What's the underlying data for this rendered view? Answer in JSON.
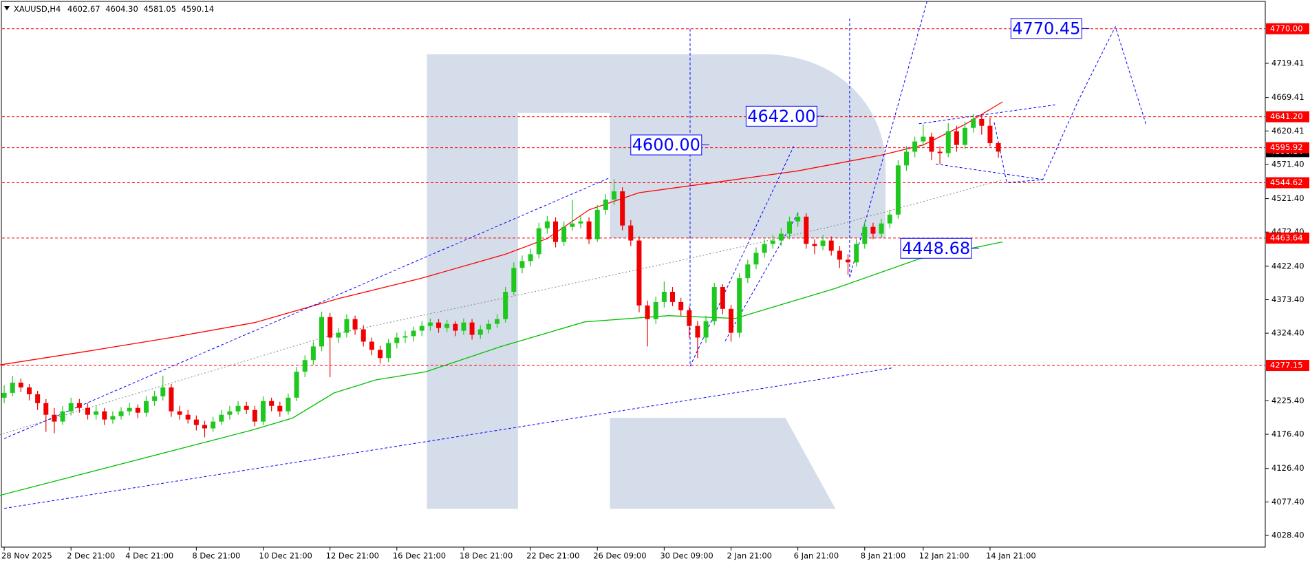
{
  "chart_data": {
    "type": "candlestick",
    "symbol": "XAUUSD,H4",
    "header": [
      {
        "value": 4602.67,
        "label": "4602.67"
      },
      {
        "value": 4604.3,
        "label": "4604.30"
      },
      {
        "value": 4581.05,
        "label": "4581.05"
      },
      {
        "value": 4590.14,
        "label": "4590.14"
      }
    ],
    "categories": [
      "28 Nov 2025",
      null,
      null,
      null,
      null,
      null,
      null,
      null,
      "2 Dec 21:00",
      null,
      null,
      null,
      null,
      null,
      null,
      "4 Dec 21:00",
      null,
      null,
      null,
      null,
      null,
      null,
      null,
      "8 Dec 21:00",
      null,
      null,
      null,
      null,
      null,
      null,
      null,
      "10 Dec 21:00",
      null,
      null,
      null,
      null,
      null,
      null,
      null,
      "12 Dec 21:00",
      null,
      null,
      null,
      null,
      null,
      null,
      null,
      "16 Dec 21:00",
      null,
      null,
      null,
      null,
      null,
      null,
      null,
      "18 Dec 21:00",
      null,
      null,
      null,
      null,
      null,
      null,
      null,
      "22 Dec 21:00",
      null,
      null,
      null,
      null,
      null,
      null,
      null,
      "26 Dec 09:00",
      null,
      null,
      null,
      null,
      null,
      null,
      null,
      "30 Dec 09:00",
      null,
      null,
      null,
      null,
      null,
      null,
      null,
      "2 Jan 21:00",
      null,
      null,
      null,
      null,
      null,
      null,
      null,
      "6 Jan 21:00",
      null,
      null,
      null,
      null,
      null,
      null,
      null,
      "8 Jan 21:00",
      null,
      null,
      null,
      null,
      null,
      null,
      "12 Jan 21:00",
      null,
      null,
      null,
      null,
      null,
      null,
      null,
      "14 Jan 21:00",
      null
    ],
    "candles": [
      [
        4230,
        4248,
        4222,
        4237
      ],
      [
        4237,
        4262,
        4232,
        4252
      ],
      [
        4252,
        4258,
        4238,
        4245
      ],
      [
        4245,
        4250,
        4226,
        4235
      ],
      [
        4235,
        4240,
        4212,
        4222
      ],
      [
        4222,
        4228,
        4180,
        4205
      ],
      [
        4205,
        4215,
        4178,
        4195
      ],
      [
        4195,
        4218,
        4190,
        4210
      ],
      [
        4210,
        4230,
        4204,
        4222
      ],
      [
        4222,
        4228,
        4208,
        4215
      ],
      [
        4215,
        4222,
        4198,
        4205
      ],
      [
        4205,
        4218,
        4198,
        4210
      ],
      [
        4210,
        4215,
        4190,
        4198
      ],
      [
        4198,
        4210,
        4192,
        4203
      ],
      [
        4203,
        4216,
        4198,
        4210
      ],
      [
        4210,
        4222,
        4204,
        4215
      ],
      [
        4215,
        4220,
        4200,
        4208
      ],
      [
        4208,
        4232,
        4202,
        4225
      ],
      [
        4225,
        4240,
        4218,
        4232
      ],
      [
        4232,
        4262,
        4226,
        4245
      ],
      [
        4245,
        4250,
        4202,
        4210
      ],
      [
        4210,
        4218,
        4198,
        4205
      ],
      [
        4205,
        4212,
        4192,
        4198
      ],
      [
        4198,
        4204,
        4182,
        4190
      ],
      [
        4190,
        4196,
        4172,
        4185
      ],
      [
        4185,
        4202,
        4180,
        4195
      ],
      [
        4195,
        4212,
        4190,
        4205
      ],
      [
        4205,
        4218,
        4198,
        4210
      ],
      [
        4210,
        4225,
        4205,
        4218
      ],
      [
        4218,
        4224,
        4206,
        4212
      ],
      [
        4212,
        4218,
        4188,
        4195
      ],
      [
        4195,
        4232,
        4190,
        4225
      ],
      [
        4225,
        4230,
        4210,
        4218
      ],
      [
        4218,
        4224,
        4202,
        4210
      ],
      [
        4210,
        4236,
        4205,
        4230
      ],
      [
        4230,
        4275,
        4225,
        4268
      ],
      [
        4268,
        4292,
        4260,
        4285
      ],
      [
        4285,
        4312,
        4278,
        4305
      ],
      [
        4305,
        4356,
        4298,
        4348
      ],
      [
        4348,
        4354,
        4260,
        4318
      ],
      [
        4318,
        4332,
        4310,
        4325
      ],
      [
        4325,
        4352,
        4318,
        4345
      ],
      [
        4345,
        4350,
        4322,
        4330
      ],
      [
        4330,
        4336,
        4305,
        4312
      ],
      [
        4312,
        4318,
        4292,
        4300
      ],
      [
        4300,
        4306,
        4280,
        4288
      ],
      [
        4288,
        4316,
        4282,
        4310
      ],
      [
        4310,
        4325,
        4302,
        4318
      ],
      [
        4318,
        4328,
        4310,
        4320
      ],
      [
        4320,
        4334,
        4312,
        4328
      ],
      [
        4328,
        4342,
        4320,
        4335
      ],
      [
        4335,
        4346,
        4328,
        4340
      ],
      [
        4340,
        4345,
        4325,
        4332
      ],
      [
        4332,
        4344,
        4326,
        4338
      ],
      [
        4338,
        4342,
        4320,
        4328
      ],
      [
        4328,
        4346,
        4322,
        4340
      ],
      [
        4340,
        4345,
        4315,
        4322
      ],
      [
        4322,
        4336,
        4316,
        4330
      ],
      [
        4330,
        4344,
        4324,
        4338
      ],
      [
        4338,
        4352,
        4332,
        4345
      ],
      [
        4345,
        4392,
        4340,
        4385
      ],
      [
        4385,
        4428,
        4380,
        4420
      ],
      [
        4420,
        4438,
        4412,
        4430
      ],
      [
        4430,
        4448,
        4422,
        4440
      ],
      [
        4440,
        4486,
        4434,
        4478
      ],
      [
        4478,
        4496,
        4470,
        4488
      ],
      [
        4488,
        4494,
        4450,
        4458
      ],
      [
        4458,
        4488,
        4452,
        4480
      ],
      [
        4480,
        4520,
        4474,
        4485
      ],
      [
        4485,
        4496,
        4478,
        4488
      ],
      [
        4488,
        4494,
        4455,
        4462
      ],
      [
        4462,
        4512,
        4458,
        4505
      ],
      [
        4505,
        4528,
        4498,
        4520
      ],
      [
        4520,
        4550,
        4512,
        4532
      ],
      [
        4532,
        4538,
        4475,
        4482
      ],
      [
        4482,
        4490,
        4452,
        4460
      ],
      [
        4460,
        4466,
        4355,
        4365
      ],
      [
        4365,
        4372,
        4305,
        4345
      ],
      [
        4345,
        4378,
        4338,
        4370
      ],
      [
        4370,
        4400,
        4362,
        4385
      ],
      [
        4385,
        4392,
        4364,
        4370
      ],
      [
        4370,
        4376,
        4350,
        4358
      ],
      [
        4358,
        4364,
        4318,
        4335
      ],
      [
        4335,
        4342,
        4288,
        4318
      ],
      [
        4318,
        4350,
        4310,
        4342
      ],
      [
        4342,
        4398,
        4336,
        4392
      ],
      [
        4392,
        4396,
        4352,
        4360
      ],
      [
        4360,
        4366,
        4312,
        4325
      ],
      [
        4325,
        4412,
        4318,
        4405
      ],
      [
        4405,
        4432,
        4398,
        4425
      ],
      [
        4425,
        4450,
        4418,
        4442
      ],
      [
        4442,
        4462,
        4435,
        4455
      ],
      [
        4455,
        4468,
        4448,
        4460
      ],
      [
        4460,
        4478,
        4452,
        4470
      ],
      [
        4470,
        4495,
        4462,
        4488
      ],
      [
        4488,
        4502,
        4480,
        4495
      ],
      [
        4495,
        4500,
        4448,
        4455
      ],
      [
        4455,
        4462,
        4440,
        4452
      ],
      [
        4452,
        4468,
        4446,
        4460
      ],
      [
        4460,
        4466,
        4438,
        4445
      ],
      [
        4445,
        4452,
        4420,
        4432
      ],
      [
        4432,
        4440,
        4410,
        4428
      ],
      [
        4428,
        4462,
        4422,
        4455
      ],
      [
        4455,
        4488,
        4448,
        4480
      ],
      [
        4480,
        4486,
        4462,
        4470
      ],
      [
        4470,
        4492,
        4464,
        4485
      ],
      [
        4485,
        4505,
        4478,
        4498
      ],
      [
        4498,
        4578,
        4492,
        4570
      ],
      [
        4570,
        4598,
        4562,
        4590
      ],
      [
        4590,
        4612,
        4582,
        4605
      ],
      [
        4605,
        4630,
        4598,
        4612
      ],
      [
        4612,
        4618,
        4578,
        4590
      ],
      [
        4590,
        4598,
        4572,
        4588
      ],
      [
        4588,
        4632,
        4582,
        4620
      ],
      [
        4620,
        4628,
        4590,
        4600
      ],
      [
        4600,
        4634,
        4594,
        4625
      ],
      [
        4625,
        4645,
        4618,
        4638
      ],
      [
        4638,
        4644,
        4615,
        4628
      ],
      [
        4628,
        4640,
        4598,
        4602.67
      ],
      [
        4602.67,
        4604.3,
        4581.05,
        4590.14
      ]
    ],
    "up_color": "#1ec81e",
    "down_color": "#f00000",
    "ylim": [
      4017.3,
      4812.1
    ],
    "yticks": [
      {
        "value": 4028.4,
        "label": "4028.40"
      },
      {
        "value": 4077.4,
        "label": "4077.40"
      },
      {
        "value": 4126.4,
        "label": "4126.40"
      },
      {
        "value": 4176.4,
        "label": "4176.40"
      },
      {
        "value": 4225.4,
        "label": "4225.40"
      },
      {
        "value": 4324.4,
        "label": "4324.40"
      },
      {
        "value": 4373.4,
        "label": "4373.40"
      },
      {
        "value": 4422.4,
        "label": "4422.40"
      },
      {
        "value": 4472.4,
        "label": "4472.40"
      },
      {
        "value": 4521.4,
        "label": "4521.40"
      },
      {
        "value": 4571.4,
        "label": "4571.40"
      },
      {
        "value": 4620.41,
        "label": "4620.41"
      },
      {
        "value": 4669.41,
        "label": "4669.41"
      },
      {
        "value": 4719.41,
        "label": "4719.41"
      }
    ],
    "levels": [
      {
        "value": 4770,
        "label": "4770.00"
      },
      {
        "value": 4641.2,
        "label": "4641.20"
      },
      {
        "value": 4595.92,
        "label": "4595.92"
      },
      {
        "value": 4544.62,
        "label": "4544.62"
      },
      {
        "value": 4463.64,
        "label": "4463.64"
      },
      {
        "value": 4277.15,
        "label": "4277.15"
      }
    ],
    "level_color": "#ff0000",
    "lines": [
      {
        "color": "#ff0000",
        "style": "solid",
        "x": [
          -0.5,
          10,
          20,
          30,
          40,
          50,
          60,
          65,
          70,
          76,
          85,
          95,
          105,
          110,
          115,
          119.5
        ],
        "values": [
          4278,
          4298,
          4318,
          4340,
          4375,
          4405,
          4440,
          4463,
          4505,
          4530,
          4545,
          4562,
          4585,
          4600,
          4630,
          4663
        ]
      },
      {
        "color": "#00c000",
        "style": "solid",
        "x": [
          -0.5,
          29.5,
          34.5,
          39.5,
          44.5,
          50.5,
          59.5,
          69.5,
          79.5,
          87.5,
          99.5,
          109.5,
          119.5
        ],
        "values": [
          4087,
          4182,
          4200,
          4237,
          4256,
          4268,
          4305,
          4341,
          4350,
          4346,
          4390,
          4433,
          4458
        ]
      },
      {
        "color": "#808080",
        "style": "dotted",
        "x": [
          -0.5,
          39.5,
          79.5,
          99.5,
          119.5
        ],
        "values": [
          4176,
          4323,
          4427,
          4482,
          4549
        ]
      }
    ],
    "trend_color": "#0000ff",
    "trend_lines": [
      {
        "x": [
          0,
          106.5
        ],
        "values": [
          4068,
          4274
        ]
      },
      {
        "x": [
          0,
          72.5
        ],
        "values": [
          4170,
          4552
        ]
      },
      {
        "x": [
          82.1,
          82.1
        ],
        "values": [
          4770,
          4276
        ]
      },
      {
        "x": [
          82.1,
          94.5
        ],
        "values": [
          4276,
          4598
        ]
      },
      {
        "x": [
          86.3,
          95
        ],
        "values": [
          4313,
          4500
        ]
      },
      {
        "x": [
          101.2,
          101.2
        ],
        "values": [
          4785,
          4406
        ]
      },
      {
        "x": [
          101.2,
          110.5
        ],
        "values": [
          4406,
          4812
        ]
      },
      {
        "x": [
          109.5,
          126
        ],
        "values": [
          4631,
          4659
        ]
      },
      {
        "x": [
          111.5,
          124.5
        ],
        "values": [
          4572,
          4549
        ]
      },
      {
        "x": [
          118.5,
          120,
          124.3,
          128.5,
          133,
          136.7
        ],
        "values": [
          4633,
          4545,
          4549,
          4663,
          4773,
          4629
        ]
      }
    ],
    "annotations": [
      {
        "x": 120.5,
        "value": 4770.45,
        "label": "4770.45"
      },
      {
        "x": 88.8,
        "value": 4642,
        "label": "4642.00"
      },
      {
        "x": 75,
        "value": 4600,
        "label": "4600.00"
      },
      {
        "x": 107.3,
        "value": 4448.68,
        "label": "4448.68"
      }
    ]
  }
}
